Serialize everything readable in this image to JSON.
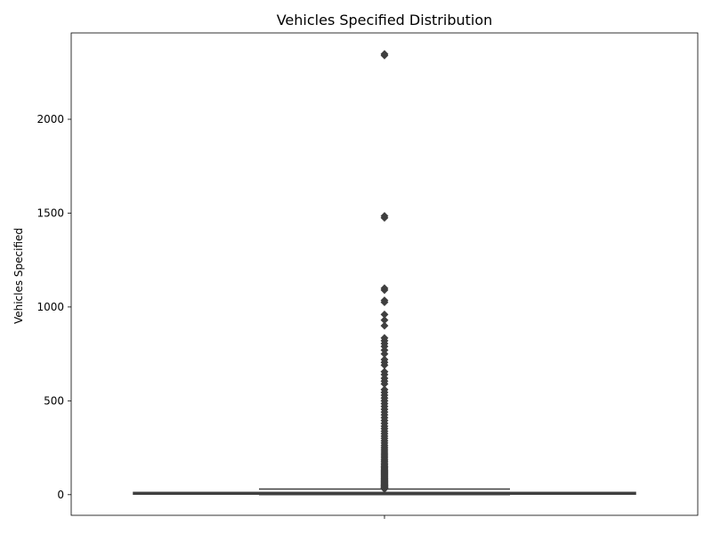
{
  "chart_data": {
    "type": "box",
    "title": "Vehicles Specified Distribution",
    "xlabel": "",
    "ylabel": "Vehicles Specified",
    "ylim": [
      -110,
      2460
    ],
    "yticks": [
      0,
      500,
      1000,
      1500,
      2000
    ],
    "grid": false,
    "legend": "none",
    "box": {
      "min": 0,
      "q1": 3,
      "median": 6,
      "q3": 12,
      "whisker_high": 30,
      "color": "#3f3f3f"
    },
    "outliers": [
      31,
      33,
      35,
      37,
      40,
      42,
      45,
      48,
      50,
      53,
      56,
      60,
      63,
      66,
      70,
      74,
      78,
      82,
      86,
      90,
      95,
      100,
      105,
      110,
      115,
      120,
      125,
      130,
      136,
      142,
      148,
      155,
      162,
      170,
      178,
      186,
      195,
      204,
      213,
      222,
      232,
      242,
      252,
      263,
      275,
      287,
      300,
      312,
      325,
      338,
      352,
      365,
      380,
      395,
      410,
      425,
      440,
      455,
      470,
      485,
      500,
      515,
      530,
      545,
      560,
      590,
      605,
      620,
      640,
      655,
      690,
      705,
      720,
      750,
      770,
      790,
      805,
      820,
      835,
      900,
      930,
      960,
      1025,
      1035,
      1090,
      1100,
      1475,
      1485,
      2340,
      2348
    ]
  }
}
